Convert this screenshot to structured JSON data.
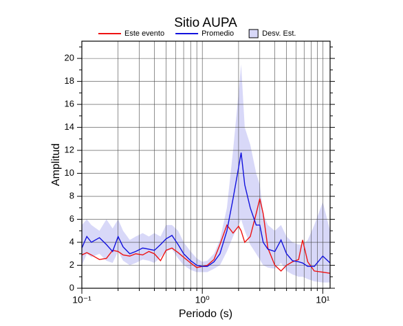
{
  "chart_data": {
    "type": "line",
    "title": "Sitio AUPA",
    "x_label": "Periodo (s)",
    "y_label": "Amplitud",
    "xscale": "log",
    "xlim": [
      0.1,
      11.5
    ],
    "ylim": [
      0,
      21.5
    ],
    "grid": true,
    "xticks": [
      {
        "value": 0.1,
        "label": "10⁻¹"
      },
      {
        "value": 1,
        "label": "10⁰"
      },
      {
        "value": 10,
        "label": "10¹"
      }
    ],
    "xminorticks": [
      0.2,
      0.3,
      0.4,
      0.5,
      0.6,
      0.7,
      0.8,
      0.9,
      2,
      3,
      4,
      5,
      6,
      7,
      8,
      9
    ],
    "yticks": [
      0,
      2,
      4,
      6,
      8,
      10,
      12,
      14,
      16,
      18,
      20
    ],
    "yminorticks": [
      1,
      3,
      5,
      7,
      9,
      11,
      13,
      15,
      17,
      19,
      21
    ],
    "x": [
      0.1,
      0.11,
      0.12,
      0.14,
      0.16,
      0.18,
      0.2,
      0.22,
      0.25,
      0.28,
      0.32,
      0.36,
      0.4,
      0.45,
      0.5,
      0.56,
      0.63,
      0.7,
      0.8,
      0.9,
      1.0,
      1.1,
      1.25,
      1.4,
      1.6,
      1.8,
      2.0,
      2.1,
      2.25,
      2.5,
      2.8,
      3.0,
      3.2,
      3.5,
      4.0,
      4.5,
      5.0,
      5.6,
      6.3,
      6.8,
      7.5,
      8.5,
      10,
      11.5
    ],
    "band": {
      "name": "Desv. Est.",
      "color": "#d8d8f8",
      "upper": [
        5.5,
        6.0,
        5.5,
        5.0,
        6.0,
        5.2,
        6.0,
        5.0,
        4.2,
        4.5,
        4.8,
        4.5,
        4.8,
        4.5,
        5.5,
        5.5,
        5.0,
        4.0,
        3.2,
        2.6,
        2.3,
        2.4,
        3.0,
        4.2,
        7.0,
        12.0,
        17.0,
        19.5,
        14.0,
        12.5,
        10.0,
        9.0,
        6.5,
        5.5,
        5.0,
        5.5,
        4.5,
        4.0,
        3.8,
        3.8,
        4.2,
        5.5,
        7.5,
        5.0
      ],
      "lower": [
        2.0,
        3.0,
        2.7,
        3.0,
        2.4,
        2.2,
        3.2,
        2.4,
        2.0,
        2.2,
        2.5,
        2.4,
        2.2,
        2.7,
        3.2,
        3.4,
        2.6,
        2.0,
        1.6,
        1.4,
        1.4,
        1.4,
        1.7,
        2.0,
        3.2,
        4.5,
        5.5,
        6.0,
        5.0,
        3.8,
        3.0,
        2.5,
        2.0,
        1.8,
        1.7,
        2.2,
        1.5,
        1.2,
        1.0,
        1.0,
        0.8,
        0.6,
        0.5,
        0.5
      ]
    },
    "series": [
      {
        "name": "Este evento",
        "color": "#ee1111",
        "values": [
          2.9,
          3.1,
          2.9,
          2.5,
          2.6,
          3.3,
          3.2,
          2.9,
          2.8,
          3.0,
          2.9,
          3.2,
          3.0,
          2.4,
          3.3,
          3.5,
          3.1,
          2.7,
          2.2,
          1.8,
          1.9,
          2.0,
          2.5,
          3.8,
          5.5,
          4.8,
          5.4,
          5.0,
          4.0,
          4.5,
          6.5,
          7.8,
          6.5,
          3.5,
          2.0,
          1.5,
          2.0,
          2.3,
          2.5,
          4.2,
          2.3,
          1.5,
          1.4,
          1.3
        ]
      },
      {
        "name": "Promedio",
        "color": "#1111dd",
        "values": [
          3.5,
          4.5,
          4.0,
          4.4,
          3.8,
          3.2,
          4.5,
          3.6,
          3.0,
          3.2,
          3.5,
          3.4,
          3.3,
          3.8,
          4.3,
          4.6,
          3.8,
          3.0,
          2.4,
          2.0,
          1.9,
          1.9,
          2.3,
          3.0,
          5.0,
          7.8,
          10.5,
          11.8,
          9.0,
          7.0,
          5.5,
          5.5,
          4.0,
          3.4,
          3.2,
          4.2,
          3.0,
          2.4,
          2.3,
          2.2,
          1.9,
          1.9,
          2.8,
          2.2
        ]
      }
    ]
  }
}
